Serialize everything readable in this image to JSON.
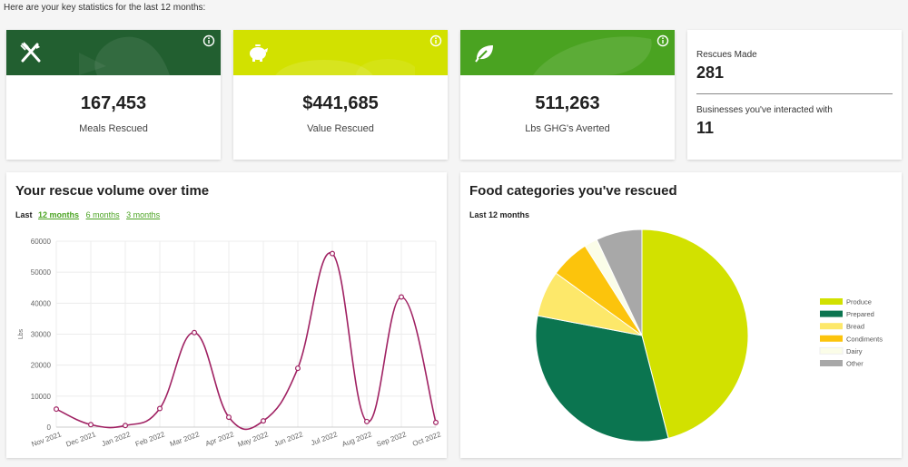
{
  "intro": "Here are your key statistics for the last 12 months:",
  "stats": [
    {
      "value": "167,453",
      "label": "Meals Rescued",
      "color": "#225f30",
      "icon": "fork-knife-icon"
    },
    {
      "value": "$441,685",
      "label": "Value Rescued",
      "color": "#d2e100",
      "icon": "piggy-bank-icon"
    },
    {
      "value": "511,263",
      "label": "Lbs GHG's Averted",
      "color": "#4aa321",
      "icon": "leaf-icon"
    }
  ],
  "side": {
    "rescues_label": "Rescues Made",
    "rescues_value": "281",
    "businesses_label": "Businesses you've interacted with",
    "businesses_value": "11"
  },
  "volume": {
    "title": "Your rescue volume over time",
    "range_label": "Last",
    "ranges": [
      "12 months",
      "6 months",
      "3 months"
    ]
  },
  "food": {
    "title": "Food categories you've rescued",
    "subtitle": "Last 12 months"
  },
  "chart_data": [
    {
      "type": "line",
      "x": [
        "Nov 2021",
        "Dec 2021",
        "Jan 2022",
        "Feb 2022",
        "Mar 2022",
        "Apr 2022",
        "May 2022",
        "Jun 2022",
        "Jul 2022",
        "Aug 2022",
        "Sep 2022",
        "Oct 2022"
      ],
      "values": [
        5800,
        800,
        500,
        6000,
        30500,
        3200,
        2000,
        19000,
        56000,
        1800,
        42000,
        1500
      ],
      "ylabel": "Lbs",
      "ylim": [
        0,
        60000
      ],
      "yticks": [
        0,
        10000,
        20000,
        30000,
        40000,
        50000,
        60000
      ],
      "color": "#a02263",
      "grid": true
    },
    {
      "type": "pie",
      "categories": [
        "Produce",
        "Prepared",
        "Bread",
        "Condiments",
        "Dairy",
        "Other"
      ],
      "values": [
        46,
        32,
        7,
        6,
        2,
        7
      ],
      "colors": [
        "#d2e100",
        "#0b7550",
        "#fde86a",
        "#fcc40c",
        "#fbfde8",
        "#a8a8a8"
      ],
      "legend": "right"
    }
  ]
}
